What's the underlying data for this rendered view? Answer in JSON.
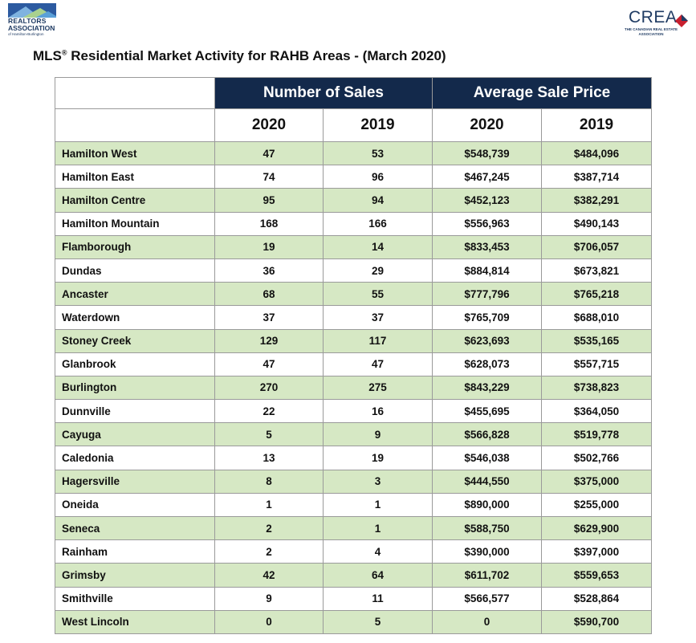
{
  "logos": {
    "left_line1": "REALTORS",
    "left_line2": "ASSOCIATION",
    "left_line3": "of Hamilton-Burlington",
    "right_word": "CREA",
    "right_sub": "THE CANADIAN REAL ESTATE ASSOCIATION"
  },
  "title": {
    "prefix": "MLS",
    "mark": "®",
    "text": "Residential Market Activity for RAHB Areas - (March 2020)"
  },
  "table": {
    "group_headers": [
      "Number of Sales",
      "Average Sale Price"
    ],
    "year_headers": [
      "2020",
      "2019",
      "2020",
      "2019"
    ],
    "rows": [
      {
        "area": "Hamilton West",
        "sales_2020": "47",
        "sales_2019": "53",
        "price_2020": "$548,739",
        "price_2019": "$484,096"
      },
      {
        "area": "Hamilton East",
        "sales_2020": "74",
        "sales_2019": "96",
        "price_2020": "$467,245",
        "price_2019": "$387,714"
      },
      {
        "area": "Hamilton Centre",
        "sales_2020": "95",
        "sales_2019": "94",
        "price_2020": "$452,123",
        "price_2019": "$382,291"
      },
      {
        "area": "Hamilton Mountain",
        "sales_2020": "168",
        "sales_2019": "166",
        "price_2020": "$556,963",
        "price_2019": "$490,143"
      },
      {
        "area": "Flamborough",
        "sales_2020": "19",
        "sales_2019": "14",
        "price_2020": "$833,453",
        "price_2019": "$706,057"
      },
      {
        "area": "Dundas",
        "sales_2020": "36",
        "sales_2019": "29",
        "price_2020": "$884,814",
        "price_2019": "$673,821"
      },
      {
        "area": "Ancaster",
        "sales_2020": "68",
        "sales_2019": "55",
        "price_2020": "$777,796",
        "price_2019": "$765,218"
      },
      {
        "area": "Waterdown",
        "sales_2020": "37",
        "sales_2019": "37",
        "price_2020": "$765,709",
        "price_2019": "$688,010"
      },
      {
        "area": "Stoney Creek",
        "sales_2020": "129",
        "sales_2019": "117",
        "price_2020": "$623,693",
        "price_2019": "$535,165"
      },
      {
        "area": "Glanbrook",
        "sales_2020": "47",
        "sales_2019": "47",
        "price_2020": "$628,073",
        "price_2019": "$557,715"
      },
      {
        "area": "Burlington",
        "sales_2020": "270",
        "sales_2019": "275",
        "price_2020": "$843,229",
        "price_2019": "$738,823"
      },
      {
        "area": "Dunnville",
        "sales_2020": "22",
        "sales_2019": "16",
        "price_2020": "$455,695",
        "price_2019": "$364,050"
      },
      {
        "area": "Cayuga",
        "sales_2020": "5",
        "sales_2019": "9",
        "price_2020": "$566,828",
        "price_2019": "$519,778"
      },
      {
        "area": "Caledonia",
        "sales_2020": "13",
        "sales_2019": "19",
        "price_2020": "$546,038",
        "price_2019": "$502,766"
      },
      {
        "area": "Hagersville",
        "sales_2020": "8",
        "sales_2019": "3",
        "price_2020": "$444,550",
        "price_2019": "$375,000"
      },
      {
        "area": "Oneida",
        "sales_2020": "1",
        "sales_2019": "1",
        "price_2020": "$890,000",
        "price_2019": "$255,000"
      },
      {
        "area": "Seneca",
        "sales_2020": "2",
        "sales_2019": "1",
        "price_2020": "$588,750",
        "price_2019": "$629,900"
      },
      {
        "area": "Rainham",
        "sales_2020": "2",
        "sales_2019": "4",
        "price_2020": "$390,000",
        "price_2019": "$397,000"
      },
      {
        "area": "Grimsby",
        "sales_2020": "42",
        "sales_2019": "64",
        "price_2020": "$611,702",
        "price_2019": "$559,653"
      },
      {
        "area": "Smithville",
        "sales_2020": "9",
        "sales_2019": "11",
        "price_2020": "$566,577",
        "price_2019": "$528,864"
      },
      {
        "area": "West Lincoln",
        "sales_2020": "0",
        "sales_2019": "5",
        "price_2020": "0",
        "price_2019": "$590,700"
      }
    ]
  },
  "colors": {
    "header_navy": "#13294b",
    "row_green": "#d6e8c4",
    "logo_blue": "#1f3b63",
    "crea_red": "#c8202f"
  }
}
